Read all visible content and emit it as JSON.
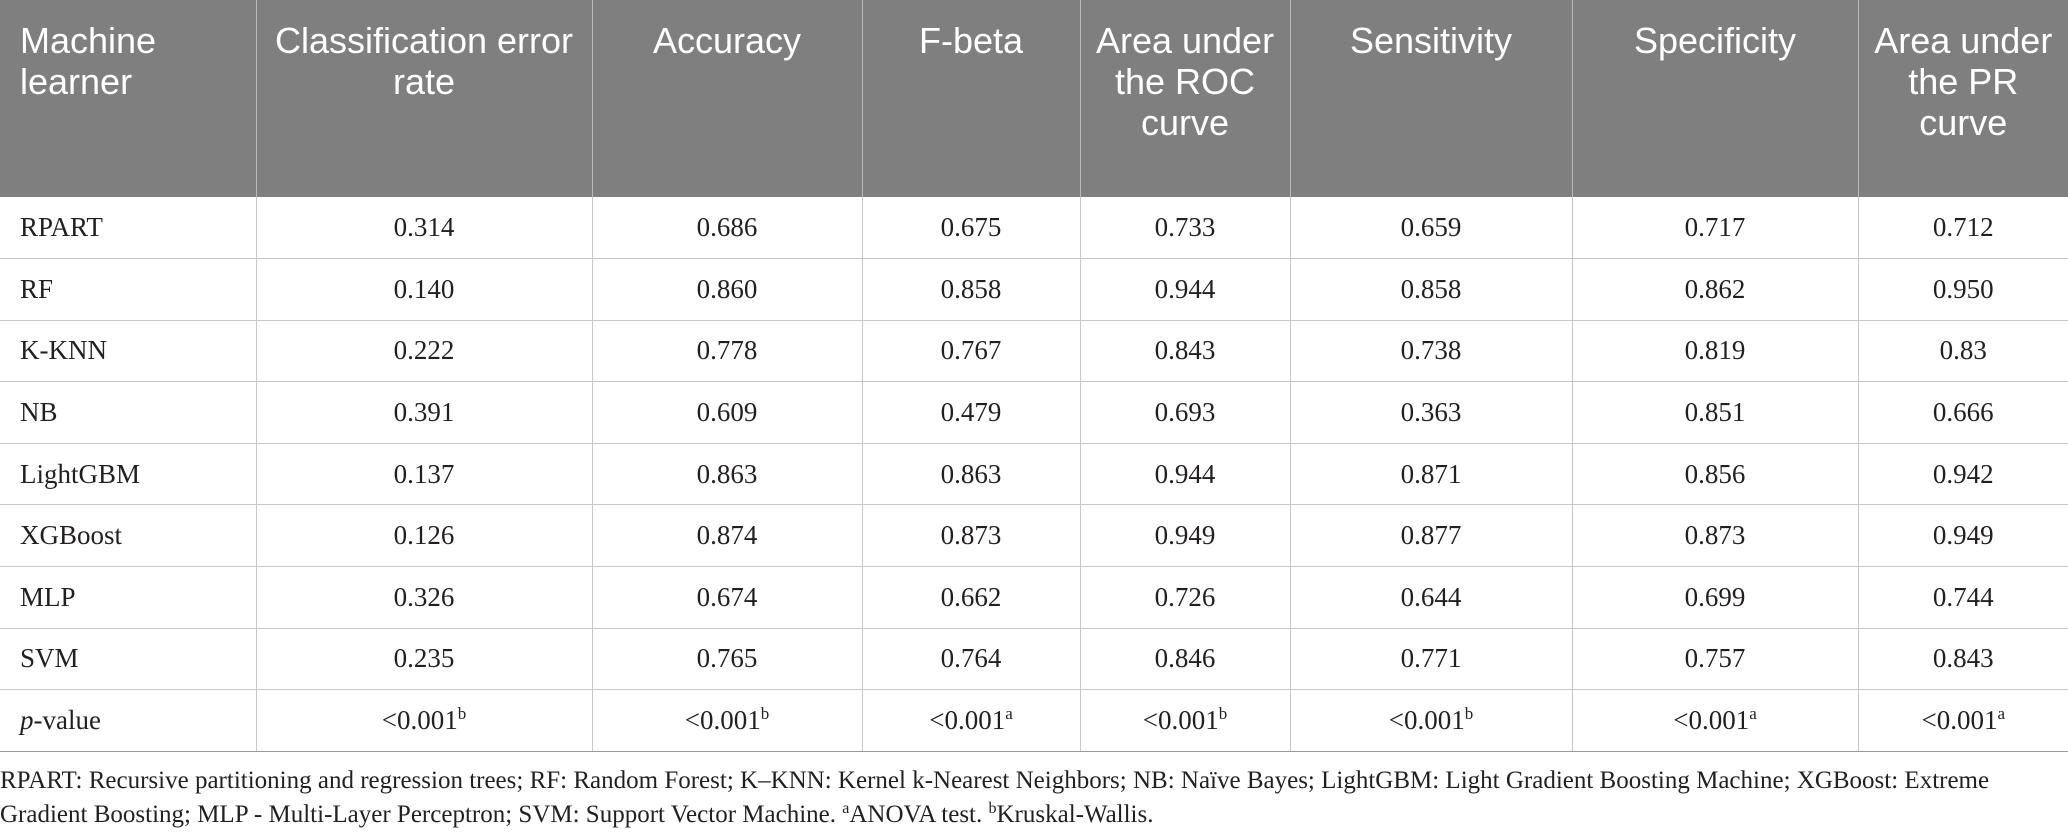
{
  "table": {
    "headers": [
      "Machine learner",
      "Classification error rate",
      "Accuracy",
      "F-beta",
      "Area under the ROC curve",
      "Sensitivity",
      "Specificity",
      "Area under the PR curve"
    ],
    "rows": [
      [
        "RPART",
        "0.314",
        "0.686",
        "0.675",
        "0.733",
        "0.659",
        "0.717",
        "0.712"
      ],
      [
        "RF",
        "0.140",
        "0.860",
        "0.858",
        "0.944",
        "0.858",
        "0.862",
        "0.950"
      ],
      [
        "K-KNN",
        "0.222",
        "0.778",
        "0.767",
        "0.843",
        "0.738",
        "0.819",
        "0.83"
      ],
      [
        "NB",
        "0.391",
        "0.609",
        "0.479",
        "0.693",
        "0.363",
        "0.851",
        "0.666"
      ],
      [
        "LightGBM",
        "0.137",
        "0.863",
        "0.863",
        "0.944",
        "0.871",
        "0.856",
        "0.942"
      ],
      [
        "XGBoost",
        "0.126",
        "0.874",
        "0.873",
        "0.949",
        "0.877",
        "0.873",
        "0.949"
      ],
      [
        "MLP",
        "0.326",
        "0.674",
        "0.662",
        "0.726",
        "0.644",
        "0.699",
        "0.744"
      ],
      [
        "SVM",
        "0.235",
        "0.765",
        "0.764",
        "0.846",
        "0.771",
        "0.757",
        "0.843"
      ]
    ],
    "pvalue_row": {
      "label_italic": "p",
      "label_rest": "-value",
      "cells": [
        {
          "value": "<0.001",
          "sup": "b"
        },
        {
          "value": "<0.001",
          "sup": "b"
        },
        {
          "value": "<0.001",
          "sup": "a"
        },
        {
          "value": "<0.001",
          "sup": "b"
        },
        {
          "value": "<0.001",
          "sup": "b"
        },
        {
          "value": "<0.001",
          "sup": "a"
        },
        {
          "value": "<0.001",
          "sup": "a"
        }
      ]
    }
  },
  "footnote": {
    "text_main": "RPART: Recursive partitioning and regression trees; RF: Random Forest; K–KNN: Kernel k-Nearest Neighbors; NB: Naïve Bayes; LightGBM: Light Gradient Boosting Machine; XGBoost: Extreme Gradient Boosting; MLP - Multi-Layer Perceptron; SVM: Support Vector Machine. ",
    "sup_a": "a",
    "text_a": "ANOVA test. ",
    "sup_b": "b",
    "text_b": "Kruskal-Wallis."
  }
}
